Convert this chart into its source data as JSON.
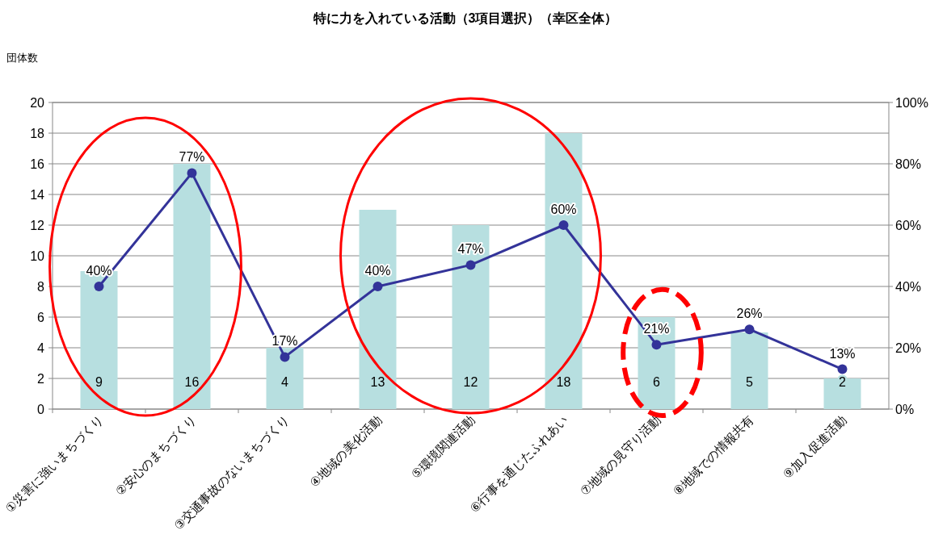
{
  "chart_data": {
    "type": "bar",
    "title": "特に力を入れている活動（3項目選択）（幸区全体）",
    "ylabel": "団体数",
    "categories": [
      "①災害に強いまちづくり",
      "②安心のまちづくり",
      "③交通事故のないまちづくり",
      "④地域の美化活動",
      "⑤環境関連活動",
      "⑥行事を通じたふれあい",
      "⑦地域の見守り活動",
      "⑧地域での情報共有",
      "⑨加入促進活動"
    ],
    "series": [
      {
        "color": "#b7dfe0",
        "values": [
          9,
          16,
          4,
          13,
          12,
          18,
          6,
          5,
          2
        ],
        "value_labels": [
          "9",
          "16",
          "4",
          "13",
          "12",
          "18",
          "6",
          "5",
          "2"
        ]
      },
      {
        "type": "line",
        "axis": "y2",
        "color": "#333399",
        "marker": "circle",
        "values": [
          40,
          77,
          17,
          40,
          47,
          60,
          21,
          26,
          13
        ],
        "value_labels": [
          "40%",
          "77%",
          "17%",
          "40%",
          "47%",
          "60%",
          "21%",
          "26%",
          "13%"
        ]
      }
    ],
    "ylim": [
      0,
      20
    ],
    "yticks": [
      0,
      2,
      4,
      6,
      8,
      10,
      12,
      14,
      16,
      18,
      20
    ],
    "y2lim": [
      0,
      100
    ],
    "y2ticks": [
      {
        "value": 0,
        "label": "0%"
      },
      {
        "value": 20,
        "label": "20%"
      },
      {
        "value": 40,
        "label": "40%"
      },
      {
        "value": 60,
        "label": "60%"
      },
      {
        "value": 80,
        "label": "80%"
      },
      {
        "value": 100,
        "label": "100%"
      }
    ],
    "grid": "y"
  }
}
